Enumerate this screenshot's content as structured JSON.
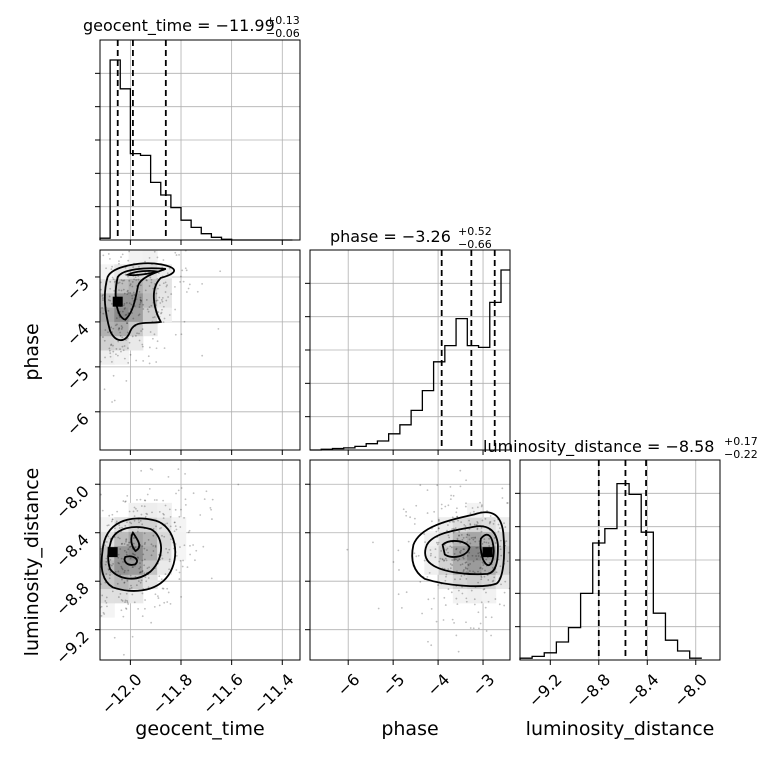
{
  "chart_data": {
    "type": "corner",
    "parameters": [
      "geocent_time",
      "phase",
      "luminosity_distance"
    ],
    "axis_labels": {
      "geocent_time": "geocent_time",
      "phase": "phase",
      "luminosity_distance": "luminosity_distance"
    },
    "ranges": {
      "geocent_time": [
        -12.12,
        -11.33
      ],
      "phase": [
        -6.85,
        -2.4
      ],
      "luminosity_distance": [
        -9.45,
        -7.8
      ]
    },
    "ticks": {
      "geocent_time": [
        -12.0,
        -11.8,
        -11.6,
        -11.4
      ],
      "phase": [
        -6,
        -5,
        -4,
        -3
      ],
      "luminosity_distance": [
        -9.2,
        -8.8,
        -8.4,
        -8.0
      ]
    },
    "tick_labels": {
      "geocent_time": [
        "−12.0",
        "−11.8",
        "−11.6",
        "−11.4"
      ],
      "phase": [
        "−6",
        "−5",
        "−4",
        "−3"
      ],
      "luminosity_distance": [
        "−9.2",
        "−8.8",
        "−8.4",
        "−8.0"
      ]
    },
    "titles": {
      "geocent_time": {
        "text": "geocent_time = −11.99",
        "plus": "+0.13",
        "minus": "−0.06"
      },
      "phase": {
        "text": "phase = −3.26",
        "plus": "+0.52",
        "minus": "−0.66"
      },
      "luminosity_distance": {
        "text": "luminosity_distance = −8.58",
        "plus": "+0.17",
        "minus": "−0.22"
      }
    },
    "quantiles": {
      "geocent_time": [
        -12.05,
        -11.99,
        -11.86
      ],
      "phase": [
        -3.92,
        -3.26,
        -2.74
      ],
      "luminosity_distance": [
        -8.8,
        -8.58,
        -8.41
      ]
    },
    "histograms": {
      "geocent_time": {
        "edges": [
          -12.12,
          -12.08,
          -12.04,
          -12.0,
          -11.96,
          -11.92,
          -11.88,
          -11.84,
          -11.8,
          -11.76,
          -11.72,
          -11.68,
          -11.64,
          -11.6,
          -11.56,
          -11.52,
          -11.48,
          -11.44,
          -11.4,
          -11.36
        ],
        "counts": [
          0.01,
          1.0,
          0.84,
          0.48,
          0.47,
          0.32,
          0.25,
          0.18,
          0.11,
          0.07,
          0.035,
          0.015,
          0.004,
          0.0,
          0.0,
          0.0,
          0.0,
          0.0,
          0.0
        ]
      },
      "phase": {
        "edges": [
          -6.85,
          -6.6,
          -6.35,
          -6.1,
          -5.85,
          -5.6,
          -5.35,
          -5.1,
          -4.85,
          -4.6,
          -4.35,
          -4.1,
          -3.85,
          -3.6,
          -3.35,
          -3.1,
          -2.85,
          -2.6,
          -2.4
        ],
        "counts": [
          0.0,
          0.004,
          0.008,
          0.012,
          0.02,
          0.035,
          0.05,
          0.09,
          0.14,
          0.22,
          0.33,
          0.49,
          0.58,
          0.73,
          0.58,
          0.57,
          0.82,
          1.0
        ]
      },
      "luminosity_distance": {
        "edges": [
          -9.45,
          -9.35,
          -9.25,
          -9.15,
          -9.05,
          -8.95,
          -8.85,
          -8.75,
          -8.65,
          -8.55,
          -8.45,
          -8.35,
          -8.25,
          -8.15,
          -8.05,
          -7.95
        ],
        "counts": [
          0.01,
          0.02,
          0.04,
          0.1,
          0.18,
          0.37,
          0.65,
          0.73,
          0.98,
          0.92,
          0.71,
          0.26,
          0.11,
          0.05,
          0.01
        ]
      }
    },
    "panels_2d": [
      {
        "x": "geocent_time",
        "y": "phase",
        "peak": [
          -12.05,
          -3.55
        ]
      },
      {
        "x": "geocent_time",
        "y": "luminosity_distance",
        "peak": [
          -12.07,
          -8.56
        ]
      },
      {
        "x": "phase",
        "y": "luminosity_distance",
        "peak": [
          -2.9,
          -8.56
        ]
      }
    ],
    "grid": true
  }
}
